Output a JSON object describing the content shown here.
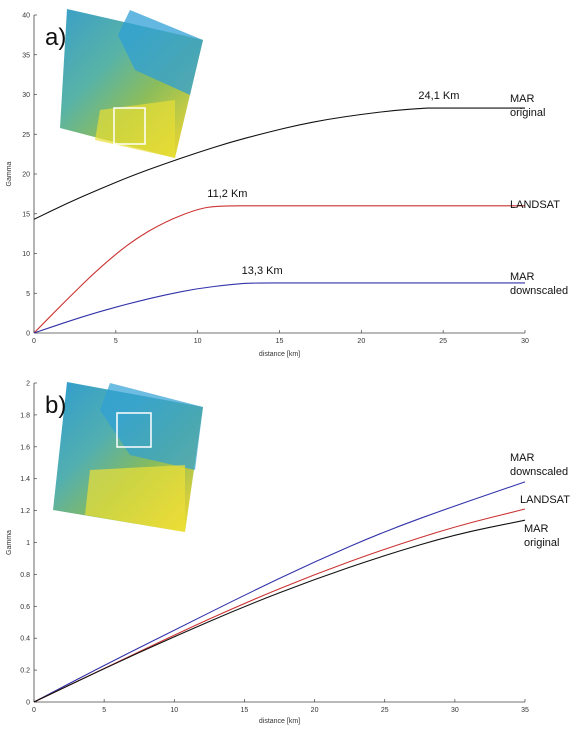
{
  "chart_data": [
    {
      "type": "line",
      "panel_label": "a)",
      "xlabel": "distance [km]",
      "ylabel": "Gamma",
      "xlim": [
        0,
        30
      ],
      "ylim": [
        0,
        40
      ],
      "xticks": [
        0,
        5,
        10,
        15,
        20,
        25,
        30
      ],
      "yticks": [
        0,
        5,
        10,
        15,
        20,
        25,
        30,
        35,
        40
      ],
      "grid": false,
      "series": [
        {
          "label": "MAR original",
          "label_lines": [
            "MAR",
            "original"
          ],
          "color": "#111111",
          "x": [
            0,
            2,
            4,
            6,
            8,
            10,
            12,
            14,
            16,
            18,
            20,
            22,
            24,
            24.1,
            26,
            28,
            30
          ],
          "y": [
            14.3,
            16.3,
            18.1,
            19.8,
            21.3,
            22.7,
            24.0,
            25.1,
            26.1,
            26.9,
            27.5,
            28.0,
            28.3,
            28.3,
            28.3,
            28.3,
            28.3
          ]
        },
        {
          "label": "LANDSAT",
          "label_lines": [
            "LANDSAT"
          ],
          "color": "#cc3333",
          "x": [
            0,
            2,
            4,
            6,
            8,
            10,
            11.2,
            14,
            18,
            22,
            26,
            30
          ],
          "y": [
            0,
            4.2,
            8.2,
            11.6,
            14.0,
            15.6,
            16.0,
            16.0,
            16.0,
            16.0,
            16.0,
            16.0
          ]
        },
        {
          "label": "MAR downscaled",
          "label_lines": [
            "MAR",
            "downscaled"
          ],
          "color": "#3333aa",
          "x": [
            0,
            2,
            4,
            6,
            8,
            10,
            12,
            13.3,
            16,
            20,
            24,
            28,
            30
          ],
          "y": [
            0,
            1.4,
            2.7,
            3.8,
            4.8,
            5.6,
            6.1,
            6.3,
            6.3,
            6.3,
            6.3,
            6.3,
            6.3
          ]
        }
      ],
      "annotations": [
        {
          "text": "24,1 Km",
          "x": 24.1,
          "y": 28.3
        },
        {
          "text": "11,2 Km",
          "x": 11.2,
          "y": 16.0
        },
        {
          "text": "13,3 Km",
          "x": 13.3,
          "y": 6.3
        }
      ]
    },
    {
      "type": "line",
      "panel_label": "b)",
      "xlabel": "distance [km]",
      "ylabel": "Gamma",
      "xlim": [
        0,
        35
      ],
      "ylim": [
        0,
        2
      ],
      "xticks": [
        0,
        5,
        10,
        15,
        20,
        25,
        30,
        35
      ],
      "yticks": [
        0,
        0.2,
        0.4,
        0.6,
        0.8,
        1,
        1.2,
        1.4,
        1.6,
        1.8,
        2
      ],
      "grid": false,
      "series": [
        {
          "label": "MAR downscaled",
          "label_lines": [
            "MAR",
            "downscaled"
          ],
          "color": "#3333aa",
          "x": [
            0,
            5,
            10,
            15,
            20,
            25,
            30,
            35
          ],
          "y": [
            0,
            0.23,
            0.45,
            0.67,
            0.88,
            1.07,
            1.23,
            1.38
          ]
        },
        {
          "label": "LANDSAT",
          "label_lines": [
            "LANDSAT"
          ],
          "color": "#cc3333",
          "x": [
            0,
            5,
            10,
            15,
            20,
            25,
            30,
            35
          ],
          "y": [
            0,
            0.21,
            0.42,
            0.62,
            0.8,
            0.96,
            1.1,
            1.21
          ]
        },
        {
          "label": "MAR original",
          "label_lines": [
            "MAR",
            "original"
          ],
          "color": "#111111",
          "x": [
            0,
            5,
            10,
            15,
            20,
            25,
            30,
            35
          ],
          "y": [
            0,
            0.21,
            0.41,
            0.6,
            0.77,
            0.92,
            1.05,
            1.14
          ]
        }
      ],
      "annotations": []
    }
  ]
}
